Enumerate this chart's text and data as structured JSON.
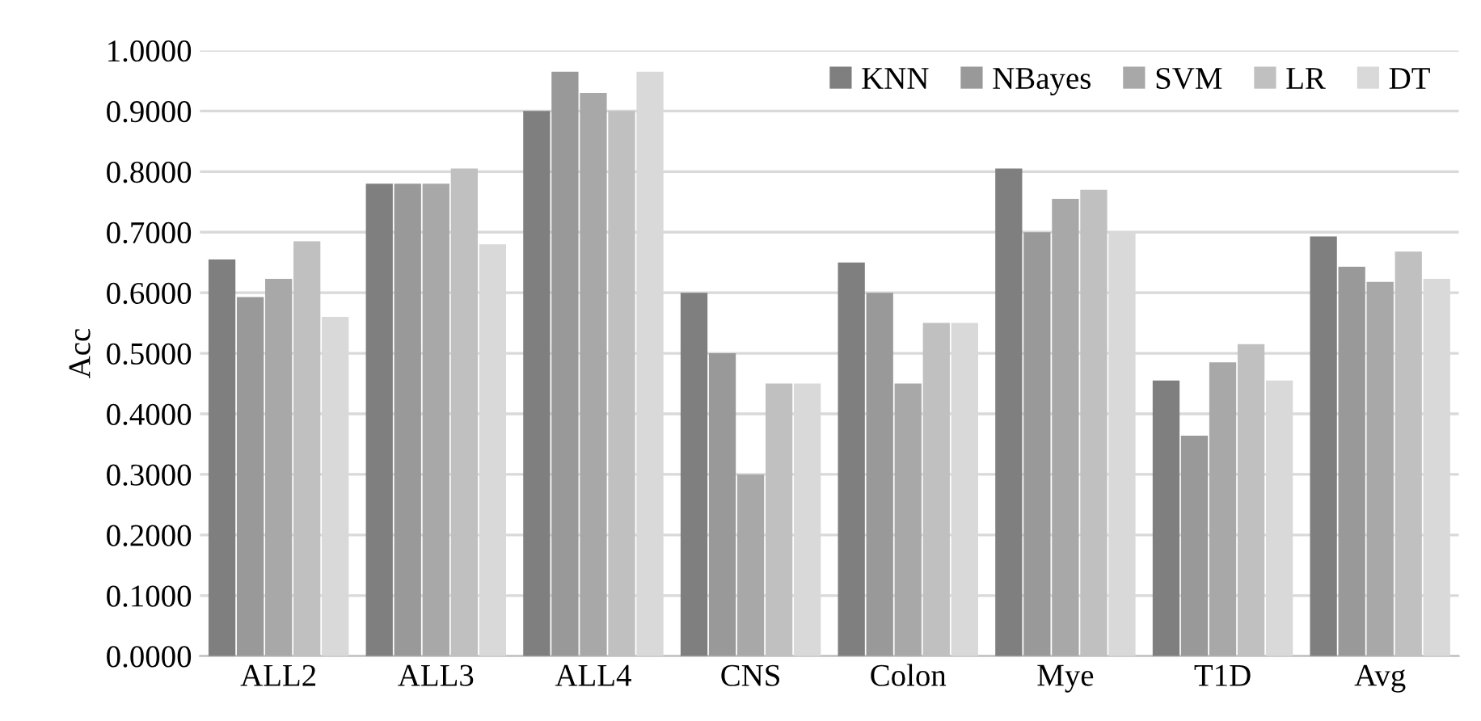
{
  "chart_data": {
    "type": "bar",
    "ylabel": "Acc",
    "categories": [
      "ALL2",
      "ALL3",
      "ALL4",
      "CNS",
      "Colon",
      "Mye",
      "T1D",
      "Avg"
    ],
    "series": [
      {
        "name": "KNN",
        "color": "#7f7f7f",
        "values": [
          0.655,
          0.78,
          0.9,
          0.6,
          0.65,
          0.805,
          0.455,
          0.693
        ]
      },
      {
        "name": "NBayes",
        "color": "#999999",
        "values": [
          0.593,
          0.78,
          0.965,
          0.5,
          0.6,
          0.7,
          0.364,
          0.643
        ]
      },
      {
        "name": "SVM",
        "color": "#a8a8a8",
        "values": [
          0.623,
          0.78,
          0.93,
          0.3,
          0.45,
          0.755,
          0.485,
          0.618
        ]
      },
      {
        "name": "LR",
        "color": "#c0c0c0",
        "values": [
          0.685,
          0.805,
          0.9,
          0.45,
          0.55,
          0.77,
          0.515,
          0.668
        ]
      },
      {
        "name": "DT",
        "color": "#d9d9d9",
        "values": [
          0.56,
          0.68,
          0.965,
          0.45,
          0.55,
          0.7,
          0.455,
          0.623
        ]
      }
    ],
    "ylim": [
      0,
      1
    ],
    "yticks": [
      {
        "value": 0,
        "label": "0.0000"
      },
      {
        "value": 0.1,
        "label": "0.1000"
      },
      {
        "value": 0.2,
        "label": "0.2000"
      },
      {
        "value": 0.3,
        "label": "0.3000"
      },
      {
        "value": 0.4,
        "label": "0.4000"
      },
      {
        "value": 0.5,
        "label": "0.5000"
      },
      {
        "value": 0.6,
        "label": "0.6000"
      },
      {
        "value": 0.7,
        "label": "0.7000"
      },
      {
        "value": 0.8,
        "label": "0.8000"
      },
      {
        "value": 0.9,
        "label": "0.9000"
      },
      {
        "value": 1,
        "label": "1.0000"
      }
    ],
    "grid": "y",
    "legend": "top right"
  }
}
